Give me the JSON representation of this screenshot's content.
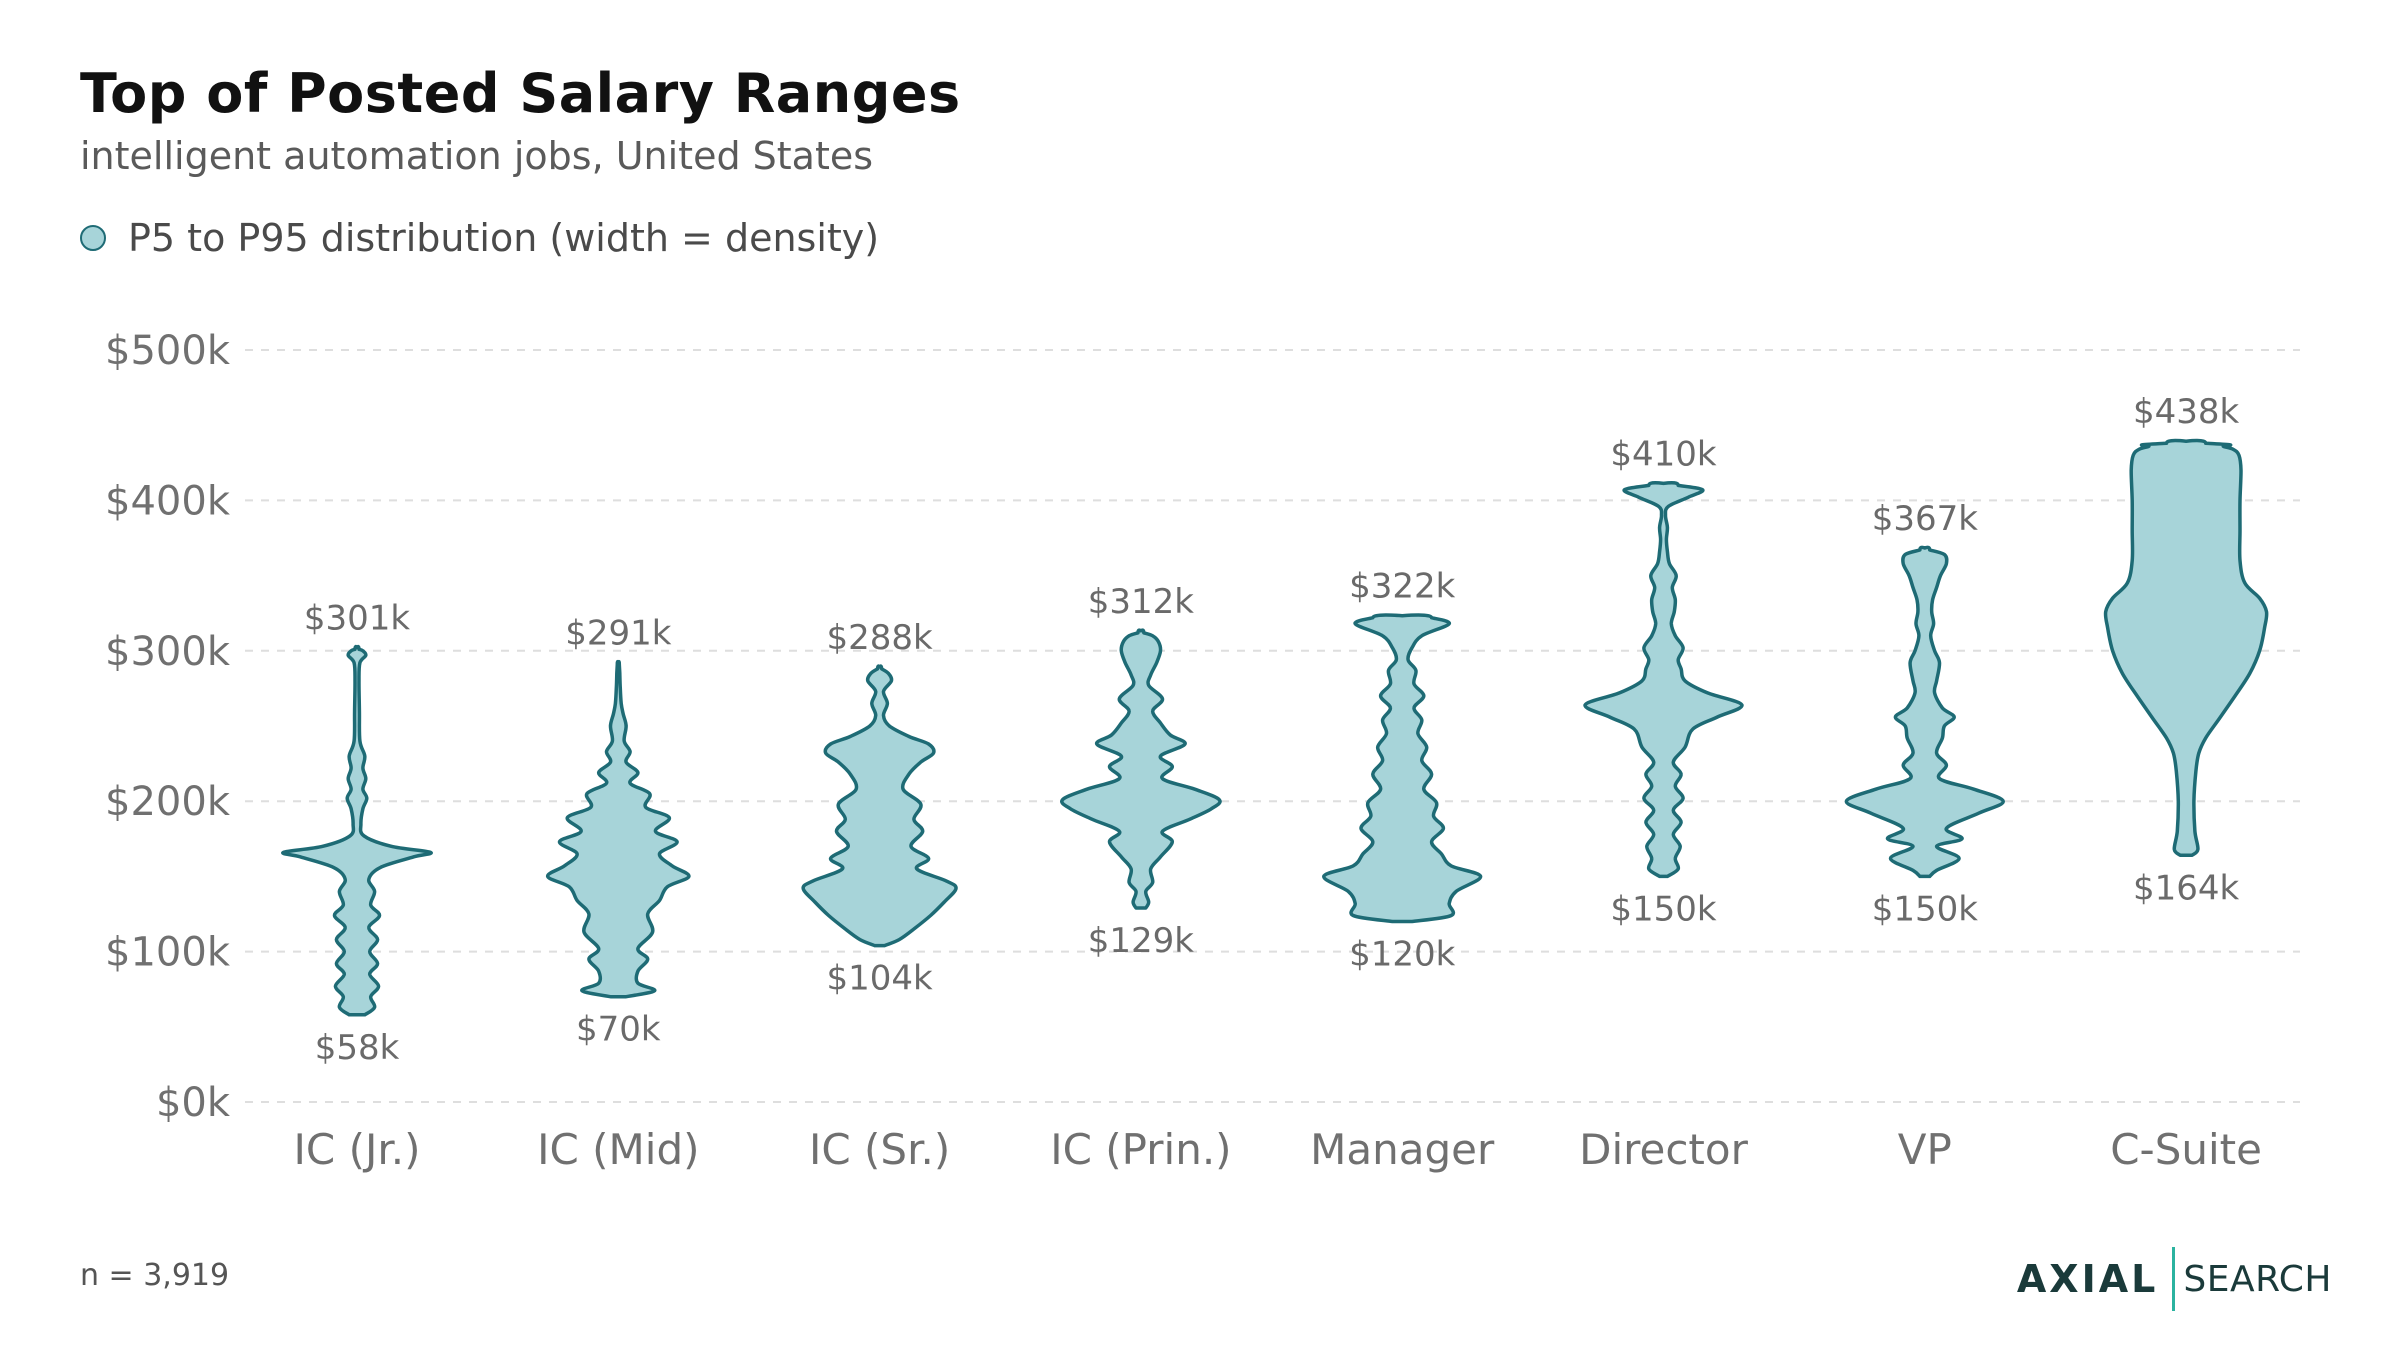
{
  "chart_data": {
    "type": "violin",
    "title": "Top of Posted Salary Ranges",
    "subtitle": "intelligent automation jobs, United States",
    "legend": {
      "label": "P5 to P95 distribution (width = density)",
      "placement": "top-left"
    },
    "ylim": [
      0,
      500000
    ],
    "yticks": [
      {
        "value": 0,
        "label": "$0k"
      },
      {
        "value": 100000,
        "label": "$100k"
      },
      {
        "value": 200000,
        "label": "$200k"
      },
      {
        "value": 300000,
        "label": "$300k"
      },
      {
        "value": 400000,
        "label": "$400k"
      },
      {
        "value": 500000,
        "label": "$500k"
      }
    ],
    "grid": true,
    "categories": [
      "IC (Jr.)",
      "IC (Mid)",
      "IC (Sr.)",
      "IC (Prin.)",
      "Manager",
      "Director",
      "VP",
      "C-Suite"
    ],
    "series": [
      {
        "category": "IC (Jr.)",
        "min": 58000,
        "max": 301000,
        "min_label": "$58k",
        "max_label": "$301k",
        "profile": [
          [
            58,
            0.08
          ],
          [
            63,
            0.18
          ],
          [
            70,
            0.14
          ],
          [
            77,
            0.22
          ],
          [
            85,
            0.13
          ],
          [
            92,
            0.21
          ],
          [
            100,
            0.13
          ],
          [
            108,
            0.21
          ],
          [
            116,
            0.12
          ],
          [
            124,
            0.23
          ],
          [
            131,
            0.14
          ],
          [
            140,
            0.18
          ],
          [
            148,
            0.12
          ],
          [
            156,
            0.24
          ],
          [
            163,
            0.58
          ],
          [
            166,
            0.75
          ],
          [
            170,
            0.35
          ],
          [
            177,
            0.07
          ],
          [
            185,
            0.04
          ],
          [
            195,
            0.06
          ],
          [
            202,
            0.1
          ],
          [
            208,
            0.06
          ],
          [
            215,
            0.09
          ],
          [
            222,
            0.06
          ],
          [
            230,
            0.08
          ],
          [
            240,
            0.03
          ],
          [
            260,
            0.025
          ],
          [
            280,
            0.02
          ],
          [
            292,
            0.03
          ],
          [
            297,
            0.09
          ],
          [
            300,
            0.06
          ],
          [
            301,
            0.02
          ]
        ]
      },
      {
        "category": "IC (Mid)",
        "min": 70000,
        "max": 291000,
        "min_label": "$70k",
        "max_label": "$291k",
        "profile": [
          [
            70,
            0.08
          ],
          [
            74,
            0.37
          ],
          [
            79,
            0.2
          ],
          [
            87,
            0.2
          ],
          [
            95,
            0.3
          ],
          [
            102,
            0.2
          ],
          [
            113,
            0.35
          ],
          [
            125,
            0.3
          ],
          [
            134,
            0.42
          ],
          [
            143,
            0.5
          ],
          [
            150,
            0.72
          ],
          [
            157,
            0.55
          ],
          [
            165,
            0.42
          ],
          [
            173,
            0.6
          ],
          [
            180,
            0.38
          ],
          [
            189,
            0.52
          ],
          [
            196,
            0.28
          ],
          [
            205,
            0.32
          ],
          [
            212,
            0.12
          ],
          [
            219,
            0.2
          ],
          [
            226,
            0.08
          ],
          [
            233,
            0.12
          ],
          [
            240,
            0.06
          ],
          [
            250,
            0.08
          ],
          [
            258,
            0.05
          ],
          [
            265,
            0.03
          ],
          [
            275,
            0.02
          ],
          [
            285,
            0.015
          ],
          [
            291,
            0.01
          ]
        ]
      },
      {
        "category": "IC (Sr.)",
        "min": 104000,
        "max": 288000,
        "min_label": "$104k",
        "max_label": "$288k",
        "profile": [
          [
            104,
            0.05
          ],
          [
            108,
            0.2
          ],
          [
            115,
            0.35
          ],
          [
            124,
            0.52
          ],
          [
            133,
            0.66
          ],
          [
            142,
            0.78
          ],
          [
            147,
            0.68
          ],
          [
            155,
            0.38
          ],
          [
            162,
            0.5
          ],
          [
            170,
            0.32
          ],
          [
            180,
            0.44
          ],
          [
            188,
            0.35
          ],
          [
            198,
            0.42
          ],
          [
            208,
            0.24
          ],
          [
            218,
            0.3
          ],
          [
            226,
            0.42
          ],
          [
            232,
            0.55
          ],
          [
            238,
            0.5
          ],
          [
            243,
            0.3
          ],
          [
            250,
            0.1
          ],
          [
            257,
            0.04
          ],
          [
            265,
            0.08
          ],
          [
            273,
            0.04
          ],
          [
            280,
            0.12
          ],
          [
            285,
            0.09
          ],
          [
            288,
            0.02
          ]
        ]
      },
      {
        "category": "IC (Prin.)",
        "min": 129000,
        "max": 312000,
        "min_label": "$129k",
        "max_label": "$312k",
        "profile": [
          [
            129,
            0.05
          ],
          [
            133,
            0.08
          ],
          [
            140,
            0.05
          ],
          [
            146,
            0.12
          ],
          [
            155,
            0.1
          ],
          [
            163,
            0.2
          ],
          [
            173,
            0.32
          ],
          [
            180,
            0.22
          ],
          [
            188,
            0.5
          ],
          [
            195,
            0.72
          ],
          [
            201,
            0.8
          ],
          [
            208,
            0.55
          ],
          [
            215,
            0.22
          ],
          [
            223,
            0.32
          ],
          [
            230,
            0.2
          ],
          [
            238,
            0.45
          ],
          [
            244,
            0.3
          ],
          [
            252,
            0.2
          ],
          [
            260,
            0.12
          ],
          [
            268,
            0.22
          ],
          [
            277,
            0.08
          ],
          [
            284,
            0.1
          ],
          [
            292,
            0.16
          ],
          [
            300,
            0.2
          ],
          [
            306,
            0.18
          ],
          [
            310,
            0.12
          ],
          [
            312,
            0.03
          ]
        ]
      },
      {
        "category": "Manager",
        "min": 120000,
        "max": 322000,
        "min_label": "$120k",
        "max_label": "$322k",
        "profile": [
          [
            120,
            0.1
          ],
          [
            124,
            0.5
          ],
          [
            132,
            0.48
          ],
          [
            140,
            0.55
          ],
          [
            150,
            0.8
          ],
          [
            157,
            0.5
          ],
          [
            165,
            0.4
          ],
          [
            173,
            0.3
          ],
          [
            182,
            0.42
          ],
          [
            190,
            0.32
          ],
          [
            199,
            0.35
          ],
          [
            208,
            0.22
          ],
          [
            218,
            0.3
          ],
          [
            227,
            0.2
          ],
          [
            236,
            0.25
          ],
          [
            245,
            0.16
          ],
          [
            254,
            0.2
          ],
          [
            262,
            0.12
          ],
          [
            270,
            0.22
          ],
          [
            278,
            0.12
          ],
          [
            287,
            0.14
          ],
          [
            294,
            0.06
          ],
          [
            302,
            0.1
          ],
          [
            310,
            0.2
          ],
          [
            318,
            0.48
          ],
          [
            322,
            0.3
          ]
        ]
      },
      {
        "category": "Director",
        "min": 150000,
        "max": 410000,
        "min_label": "$150k",
        "max_label": "$410k",
        "profile": [
          [
            150,
            0.04
          ],
          [
            155,
            0.15
          ],
          [
            162,
            0.12
          ],
          [
            170,
            0.17
          ],
          [
            178,
            0.1
          ],
          [
            186,
            0.18
          ],
          [
            194,
            0.1
          ],
          [
            202,
            0.2
          ],
          [
            210,
            0.12
          ],
          [
            218,
            0.18
          ],
          [
            226,
            0.1
          ],
          [
            236,
            0.22
          ],
          [
            248,
            0.3
          ],
          [
            256,
            0.55
          ],
          [
            264,
            0.8
          ],
          [
            272,
            0.45
          ],
          [
            280,
            0.22
          ],
          [
            288,
            0.18
          ],
          [
            294,
            0.15
          ],
          [
            302,
            0.2
          ],
          [
            310,
            0.12
          ],
          [
            318,
            0.08
          ],
          [
            326,
            0.11
          ],
          [
            334,
            0.12
          ],
          [
            342,
            0.09
          ],
          [
            350,
            0.13
          ],
          [
            358,
            0.06
          ],
          [
            366,
            0.04
          ],
          [
            374,
            0.03
          ],
          [
            382,
            0.04
          ],
          [
            390,
            0.02
          ],
          [
            396,
            0.05
          ],
          [
            402,
            0.25
          ],
          [
            407,
            0.4
          ],
          [
            410,
            0.15
          ]
        ]
      },
      {
        "category": "VP",
        "min": 150000,
        "max": 367000,
        "min_label": "$150k",
        "max_label": "$367k",
        "profile": [
          [
            150,
            0.05
          ],
          [
            154,
            0.12
          ],
          [
            162,
            0.35
          ],
          [
            170,
            0.12
          ],
          [
            175,
            0.38
          ],
          [
            182,
            0.22
          ],
          [
            192,
            0.55
          ],
          [
            200,
            0.8
          ],
          [
            208,
            0.5
          ],
          [
            215,
            0.15
          ],
          [
            224,
            0.22
          ],
          [
            232,
            0.12
          ],
          [
            242,
            0.18
          ],
          [
            250,
            0.2
          ],
          [
            256,
            0.3
          ],
          [
            262,
            0.18
          ],
          [
            272,
            0.1
          ],
          [
            280,
            0.12
          ],
          [
            292,
            0.15
          ],
          [
            300,
            0.1
          ],
          [
            310,
            0.06
          ],
          [
            318,
            0.09
          ],
          [
            326,
            0.07
          ],
          [
            334,
            0.08
          ],
          [
            342,
            0.12
          ],
          [
            350,
            0.16
          ],
          [
            358,
            0.22
          ],
          [
            364,
            0.2
          ],
          [
            367,
            0.05
          ]
        ]
      },
      {
        "category": "C-Suite",
        "min": 164000,
        "max": 438000,
        "min_label": "$164k",
        "max_label": "$438k",
        "profile": [
          [
            164,
            0.06
          ],
          [
            168,
            0.12
          ],
          [
            180,
            0.09
          ],
          [
            200,
            0.08
          ],
          [
            220,
            0.1
          ],
          [
            232,
            0.13
          ],
          [
            242,
            0.2
          ],
          [
            255,
            0.34
          ],
          [
            270,
            0.5
          ],
          [
            285,
            0.65
          ],
          [
            300,
            0.75
          ],
          [
            315,
            0.8
          ],
          [
            326,
            0.82
          ],
          [
            335,
            0.75
          ],
          [
            345,
            0.6
          ],
          [
            360,
            0.55
          ],
          [
            380,
            0.55
          ],
          [
            400,
            0.55
          ],
          [
            420,
            0.56
          ],
          [
            430,
            0.54
          ],
          [
            434,
            0.48
          ],
          [
            436,
            0.38
          ],
          [
            437,
            0.45
          ],
          [
            438,
            0.2
          ]
        ]
      }
    ]
  },
  "footnote": "n = 3,919",
  "brand": {
    "name_left": "AXIAL",
    "name_right": "SEARCH"
  },
  "colors": {
    "violin_fill": "#a7d4d9",
    "violin_stroke": "#1e6b75",
    "grid": "#dedede",
    "brand_accent": "#2bb3a0"
  }
}
